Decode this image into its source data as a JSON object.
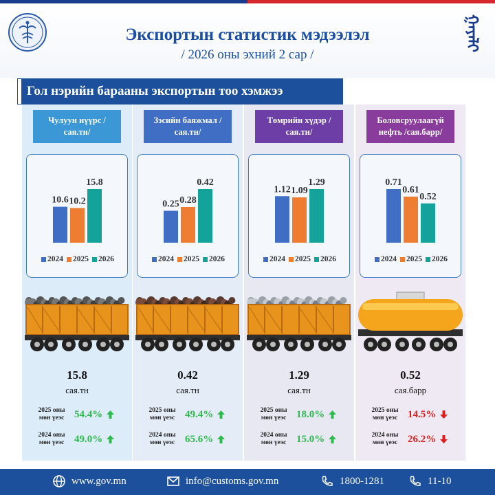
{
  "header": {
    "title": "Экспортын статистик мэдээлэл",
    "subtitle": "/ 2026 оны эхний 2 сар /",
    "script_text": "ᠭᠠᠶᠠᠯᠢ"
  },
  "banner": {
    "text": "Гол нэрийн барааны экспортын тоо хэмжээ"
  },
  "colors": {
    "y2024": "#3f6ec4",
    "y2025": "#ee7d31",
    "y2026": "#13a39a",
    "up": "#2dbb4e",
    "down": "#e01d1d"
  },
  "legend": [
    "2024",
    "2025",
    "2026"
  ],
  "chart_data": [
    {
      "type": "bar",
      "title": "Чулуун нүүрс /сая.тн/",
      "categories": [
        "2024",
        "2025",
        "2026"
      ],
      "values": [
        10.6,
        10.2,
        15.8
      ],
      "labels": [
        "10.6",
        "10.2",
        "15.8"
      ]
    },
    {
      "type": "bar",
      "title": "Зэсийн баяжмал /сая.тн/",
      "categories": [
        "2024",
        "2025",
        "2026"
      ],
      "values": [
        0.25,
        0.28,
        0.42
      ],
      "labels": [
        "0.25",
        "0.28",
        "0.42"
      ]
    },
    {
      "type": "bar",
      "title": "Төмрийн хүдэр /сая.тн/",
      "categories": [
        "2024",
        "2025",
        "2026"
      ],
      "values": [
        1.12,
        1.09,
        1.29
      ],
      "labels": [
        "1.12",
        "1.09",
        "1.29"
      ]
    },
    {
      "type": "bar",
      "title": "Боловсруулаагүй нефть /сая.барр/",
      "categories": [
        "2024",
        "2025",
        "2026"
      ],
      "values": [
        0.71,
        0.61,
        0.52
      ],
      "labels": [
        "0.71",
        "0.61",
        "0.52"
      ]
    }
  ],
  "columns": [
    {
      "label": "Чулуун нүүрс /сая.тн/",
      "value": "15.8",
      "unit": "сая.тн",
      "wagon": "coal",
      "cmp": [
        {
          "label": "2025 оны мөн үеэс",
          "pct": "54.4%",
          "dir": "up"
        },
        {
          "label": "2024 оны мөн үеэс",
          "pct": "49.0%",
          "dir": "up"
        }
      ]
    },
    {
      "label": "Зэсийн баяжмал /сая.тн/",
      "value": "0.42",
      "unit": "сая.тн",
      "wagon": "copper",
      "cmp": [
        {
          "label": "2025 оны мөн үеэс",
          "pct": "49.4%",
          "dir": "up"
        },
        {
          "label": "2024 оны мөн үеэс",
          "pct": "65.6%",
          "dir": "up"
        }
      ]
    },
    {
      "label": "Төмрийн хүдэр /сая.тн/",
      "value": "1.29",
      "unit": "сая.тн",
      "wagon": "iron",
      "cmp": [
        {
          "label": "2025 оны мөн үеэс",
          "pct": "18.0%",
          "dir": "up"
        },
        {
          "label": "2024 оны мөн үеэс",
          "pct": "15.0%",
          "dir": "up"
        }
      ]
    },
    {
      "label": "Боловсруулаагүй нефть /сая.барр/",
      "value": "0.52",
      "unit": "сая.барр",
      "wagon": "tank",
      "cmp": [
        {
          "label": "2025 оны мөн үеэс",
          "pct": "14.5%",
          "dir": "down"
        },
        {
          "label": "2024 оны мөн үеэс",
          "pct": "26.2%",
          "dir": "down"
        }
      ]
    }
  ],
  "footer": {
    "website": "www.gov.mn",
    "email": "info@customs.gov.mn",
    "phone1": "1800-1281",
    "phone2": "11-10"
  }
}
